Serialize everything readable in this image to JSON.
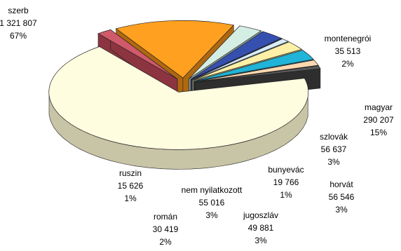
{
  "chart_data": {
    "type": "pie",
    "style": "3d-exploded",
    "slices": [
      {
        "name": "szerb",
        "count_text": "1 321 807",
        "pct_text": "67%",
        "share": 67.0,
        "color": "#fffde0",
        "side": "#c8c4a6"
      },
      {
        "name": "montenegrói",
        "count_text": "35 513",
        "pct_text": "2%",
        "share": 1.8,
        "color": "#d05a6a",
        "side": "#8c3440"
      },
      {
        "name": "magyar",
        "count_text": "290 207",
        "pct_text": "15%",
        "share": 14.7,
        "color": "#ffa020",
        "side": "#b06810"
      },
      {
        "name": "szlovák",
        "count_text": "56 637",
        "pct_text": "3%",
        "share": 2.9,
        "color": "#d4eee4",
        "side": "#8fa69c"
      },
      {
        "name": "horvát",
        "count_text": "56 546",
        "pct_text": "3%",
        "share": 2.9,
        "color": "#3650b0",
        "side": "#1e2e70"
      },
      {
        "name": "bunyevác",
        "count_text": "19 766",
        "pct_text": "1%",
        "share": 1.0,
        "color": "#d8ecf8",
        "side": "#8fa2b0"
      },
      {
        "name": "jugoszláv",
        "count_text": "49 881",
        "pct_text": "3%",
        "share": 2.5,
        "color": "#fff0a8",
        "side": "#b0a470"
      },
      {
        "name": "nem nyilatkozott",
        "count_text": "55 016",
        "pct_text": "3%",
        "share": 2.8,
        "color": "#20b4d8",
        "side": "#157890"
      },
      {
        "name": "román",
        "count_text": "30 419",
        "pct_text": "2%",
        "share": 1.5,
        "color": "#ffd8b0",
        "side": "#b09070"
      },
      {
        "name": "ruszin",
        "count_text": "15 626",
        "pct_text": "1%",
        "share": 0.8,
        "color": "#5a5a5a",
        "side": "#2e2e2e"
      }
    ]
  }
}
